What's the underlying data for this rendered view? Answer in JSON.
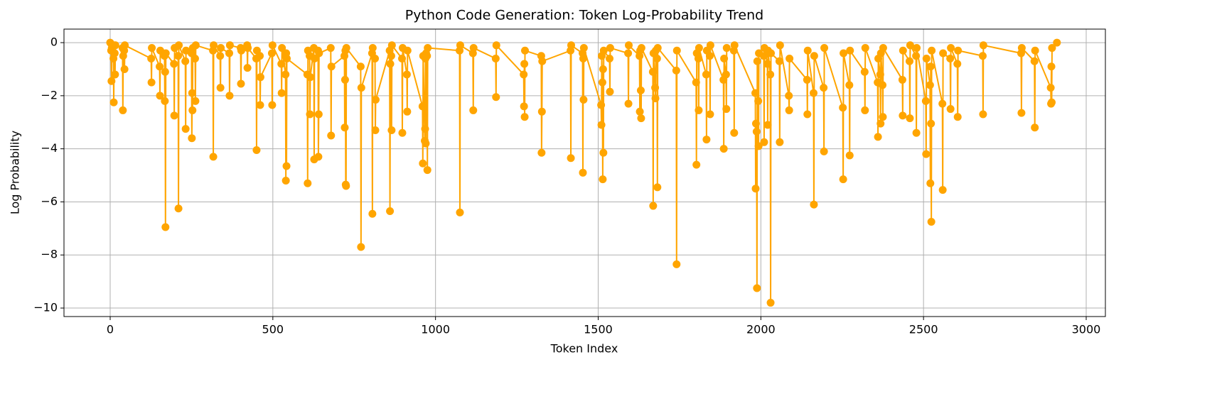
{
  "chart_data": {
    "type": "line",
    "title": "Python Code Generation: Token Log-Probability Trend",
    "xlabel": "Token Index",
    "ylabel": "Log Probability",
    "xlim": [
      -142,
      3059
    ],
    "ylim": [
      -10.32,
      0.51
    ],
    "xticks": [
      0,
      500,
      1000,
      1500,
      2000,
      2500,
      3000
    ],
    "yticks": [
      {
        "value": -10,
        "label": "−10"
      },
      {
        "value": -8,
        "label": "−8"
      },
      {
        "value": -6,
        "label": "−6"
      },
      {
        "value": -4,
        "label": "−4"
      },
      {
        "value": -2,
        "label": "−2"
      },
      0
    ],
    "grid": true,
    "marker": "circle",
    "series": [
      {
        "color": "#ffa500",
        "x": [
          0,
          3,
          4,
          5,
          10,
          11,
          12,
          14,
          15,
          16,
          38,
          39,
          40,
          43,
          44,
          45,
          126,
          127,
          128,
          152,
          153,
          154,
          167,
          168,
          169,
          170,
          171,
          196,
          197,
          198,
          209,
          210,
          211,
          231,
          232,
          233,
          250,
          251,
          252,
          253,
          254,
          261,
          262,
          263,
          316,
          317,
          318,
          338,
          339,
          340,
          366,
          367,
          368,
          401,
          402,
          403,
          421,
          422,
          423,
          449,
          450,
          451,
          460,
          461,
          462,
          497,
          498,
          499,
          526,
          527,
          528,
          539,
          540,
          541,
          542,
          543,
          606,
          607,
          608,
          613,
          614,
          615,
          626,
          627,
          628,
          639,
          640,
          641,
          642,
          678,
          679,
          680,
          720,
          721,
          722,
          723,
          724,
          725,
          726,
          770,
          771,
          772,
          805,
          806,
          807,
          814,
          815,
          816,
          859,
          860,
          861,
          864,
          865,
          866,
          897,
          898,
          899,
          912,
          913,
          914,
          960,
          961,
          962,
          967,
          968,
          969,
          970,
          971,
          974,
          975,
          976,
          1074,
          1075,
          1076,
          1115,
          1116,
          1117,
          1185,
          1186,
          1187,
          1271,
          1272,
          1273,
          1274,
          1275,
          1325,
          1326,
          1327,
          1328,
          1415,
          1416,
          1417,
          1452,
          1453,
          1454,
          1455,
          1456,
          1509,
          1510,
          1511,
          1513,
          1514,
          1515,
          1516,
          1517,
          1535,
          1536,
          1537,
          1592,
          1593,
          1594,
          1627,
          1628,
          1629,
          1631,
          1632,
          1633,
          1668,
          1669,
          1670,
          1675,
          1676,
          1677,
          1681,
          1682,
          1683,
          1740,
          1741,
          1742,
          1801,
          1802,
          1803,
          1808,
          1809,
          1810,
          1832,
          1833,
          1834,
          1843,
          1844,
          1845,
          1885,
          1886,
          1887,
          1893,
          1894,
          1895,
          1917,
          1918,
          1919,
          1983,
          1984,
          1985,
          1987,
          1988,
          1989,
          1992,
          1993,
          1994,
          2009,
          2010,
          2011,
          2020,
          2021,
          2022,
          2029,
          2030,
          2031,
          2057,
          2058,
          2059,
          2086,
          2087,
          2088,
          2142,
          2143,
          2144,
          2162,
          2163,
          2164,
          2193,
          2194,
          2195,
          2252,
          2253,
          2254,
          2272,
          2273,
          2274,
          2319,
          2320,
          2321,
          2359,
          2360,
          2361,
          2367,
          2368,
          2369,
          2374,
          2375,
          2376,
          2435,
          2436,
          2437,
          2457,
          2458,
          2459,
          2477,
          2478,
          2479,
          2507,
          2508,
          2509,
          2520,
          2521,
          2522,
          2523,
          2524,
          2525,
          2558,
          2559,
          2560,
          2582,
          2583,
          2584,
          2604,
          2605,
          2606,
          2682,
          2683,
          2684,
          2800,
          2801,
          2802,
          2841,
          2842,
          2843,
          2891,
          2892,
          2893,
          2894,
          2895,
          2910
        ],
        "values": [
          0,
          -0.3,
          -1.45,
          -0.2,
          -0.6,
          -2.25,
          -0.1,
          -0.4,
          -1.2,
          -0.1,
          -0.2,
          -2.55,
          -0.5,
          -0.3,
          -1.0,
          -0.1,
          -0.6,
          -1.5,
          -0.2,
          -0.9,
          -2.0,
          -0.3,
          -0.5,
          -2.2,
          -1.1,
          -6.95,
          -0.4,
          -0.8,
          -2.75,
          -0.2,
          -0.5,
          -6.25,
          -0.1,
          -0.7,
          -3.25,
          -0.3,
          -0.4,
          -3.6,
          -1.9,
          -2.55,
          -0.2,
          -0.6,
          -2.2,
          -0.1,
          -0.3,
          -4.3,
          -0.1,
          -0.5,
          -1.7,
          -0.2,
          -0.4,
          -2.0,
          -0.1,
          -0.2,
          -1.55,
          -0.3,
          -0.1,
          -0.95,
          -0.2,
          -0.6,
          -4.05,
          -0.3,
          -0.5,
          -2.35,
          -1.3,
          -0.4,
          -2.35,
          -0.1,
          -0.8,
          -1.9,
          -0.2,
          -1.2,
          -5.2,
          -0.4,
          -4.65,
          -0.6,
          -1.2,
          -5.3,
          -0.3,
          -0.5,
          -2.7,
          -1.3,
          -0.2,
          -4.4,
          -0.6,
          -0.3,
          -4.3,
          -2.7,
          -0.4,
          -0.2,
          -3.5,
          -0.9,
          -0.5,
          -3.2,
          -1.4,
          -0.3,
          -5.35,
          -5.4,
          -0.2,
          -0.9,
          -7.7,
          -1.7,
          -0.4,
          -6.45,
          -0.2,
          -0.6,
          -3.3,
          -2.15,
          -0.3,
          -6.35,
          -0.8,
          -0.5,
          -3.3,
          -0.1,
          -0.6,
          -3.4,
          -0.2,
          -1.2,
          -2.6,
          -0.3,
          -2.4,
          -4.55,
          -0.5,
          -3.7,
          -3.25,
          -0.6,
          -3.8,
          -0.4,
          -0.5,
          -4.8,
          -0.2,
          -0.3,
          -6.4,
          -0.1,
          -0.4,
          -2.55,
          -0.2,
          -0.6,
          -2.05,
          -0.1,
          -1.2,
          -2.4,
          -0.8,
          -2.8,
          -0.3,
          -0.5,
          -4.15,
          -2.6,
          -0.7,
          -0.3,
          -4.35,
          -0.1,
          -0.4,
          -4.9,
          -0.6,
          -2.15,
          -0.2,
          -2.35,
          -3.1,
          -0.5,
          -1.5,
          -5.15,
          -1.0,
          -4.15,
          -0.3,
          -0.6,
          -1.85,
          -0.2,
          -0.4,
          -2.3,
          -0.1,
          -0.5,
          -2.6,
          -0.3,
          -1.8,
          -2.85,
          -0.2,
          -1.1,
          -6.15,
          -0.4,
          -1.7,
          -2.1,
          -0.3,
          -0.6,
          -5.45,
          -0.2,
          -1.05,
          -8.35,
          -0.3,
          -1.5,
          -4.6,
          -0.4,
          -0.6,
          -2.55,
          -0.2,
          -1.2,
          -3.65,
          -0.3,
          -0.5,
          -2.7,
          -0.1,
          -1.4,
          -4.0,
          -0.6,
          -1.2,
          -2.5,
          -0.2,
          -0.3,
          -3.4,
          -0.1,
          -1.9,
          -5.5,
          -3.05,
          -3.35,
          -9.25,
          -0.7,
          -2.2,
          -3.9,
          -0.4,
          -0.5,
          -3.75,
          -0.2,
          -0.8,
          -3.1,
          -0.3,
          -1.2,
          -9.8,
          -0.4,
          -0.7,
          -3.75,
          -0.1,
          -2.0,
          -2.55,
          -0.6,
          -1.4,
          -2.7,
          -0.3,
          -1.9,
          -6.1,
          -0.5,
          -1.7,
          -4.1,
          -0.2,
          -2.45,
          -5.15,
          -0.4,
          -1.6,
          -4.25,
          -0.3,
          -1.1,
          -2.55,
          -0.2,
          -1.5,
          -3.55,
          -0.6,
          -1.2,
          -3.05,
          -0.4,
          -1.6,
          -2.8,
          -0.2,
          -1.4,
          -2.75,
          -0.3,
          -0.7,
          -2.85,
          -0.1,
          -0.5,
          -3.4,
          -0.2,
          -2.2,
          -4.2,
          -0.6,
          -1.6,
          -5.3,
          -0.9,
          -3.05,
          -6.75,
          -0.3,
          -2.3,
          -5.55,
          -0.4,
          -0.6,
          -2.5,
          -0.2,
          -0.8,
          -2.8,
          -0.3,
          -0.5,
          -2.7,
          -0.1,
          -0.4,
          -2.65,
          -0.2,
          -0.7,
          -3.2,
          -0.3,
          -1.7,
          -2.3,
          -0.9,
          -2.25,
          -0.2,
          0
        ]
      }
    ]
  }
}
